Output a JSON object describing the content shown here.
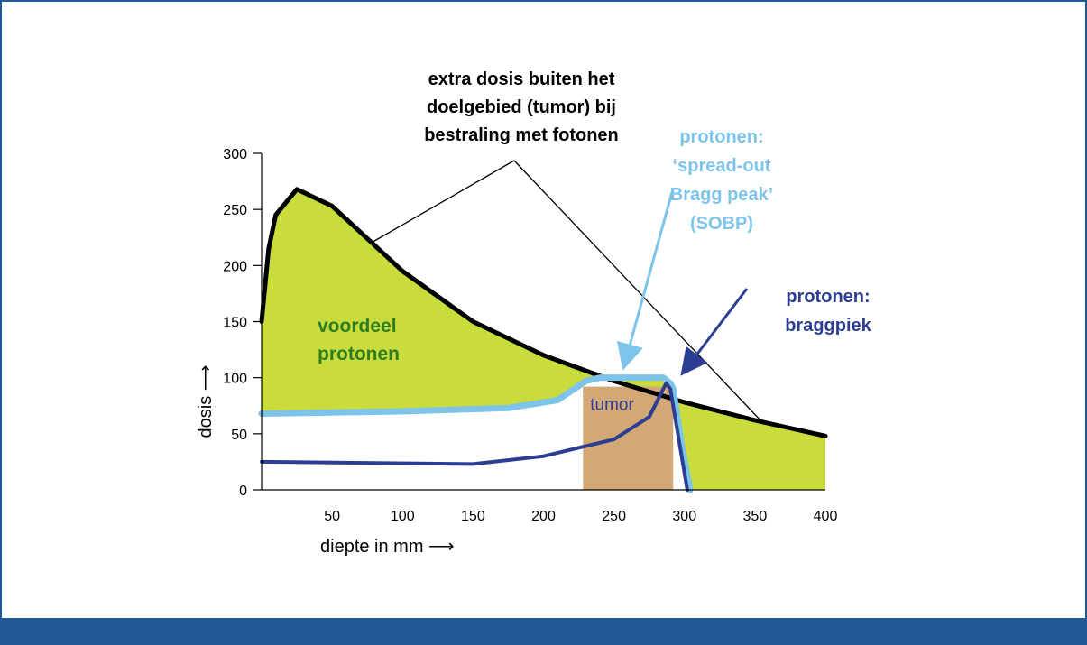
{
  "chart_data": {
    "type": "line",
    "xlim": [
      0,
      400
    ],
    "ylim": [
      0,
      300
    ],
    "xticks": [
      50,
      100,
      150,
      200,
      250,
      300,
      350,
      400
    ],
    "yticks": [
      0,
      50,
      100,
      150,
      200,
      250,
      300
    ],
    "x_label": "diepte in mm ⟶",
    "y_label": "dosis ⟶",
    "fill_color": "#c9dc3c",
    "series": [
      {
        "color": "#000000",
        "x": [
          0,
          5,
          10,
          25,
          50,
          100,
          150,
          200,
          250,
          300,
          350,
          400
        ],
        "values": [
          150,
          215,
          245,
          268,
          253,
          195,
          150,
          120,
          97,
          78,
          62,
          48
        ]
      },
      {
        "color": "#7dc3ea",
        "x": [
          0,
          100,
          175,
          210,
          230,
          240,
          285,
          290,
          292,
          298,
          304
        ],
        "values": [
          68,
          70,
          73,
          80,
          97,
          100,
          100,
          95,
          90,
          40,
          0
        ]
      },
      {
        "color": "#2c3e92",
        "x": [
          0,
          150,
          200,
          250,
          275,
          287,
          290,
          298,
          302
        ],
        "values": [
          25,
          23,
          30,
          45,
          65,
          95,
          90,
          30,
          0
        ]
      }
    ],
    "tumor": {
      "label": "tumor",
      "x": [
        228,
        292
      ],
      "value": 92,
      "color": "#d3a876"
    },
    "annotations": {
      "photons": [
        "extra dosis buiten het",
        "doelgebied (tumor) bij",
        "bestraling met fotonen"
      ],
      "advantage": [
        "voordeel",
        "protonen"
      ],
      "sobp": [
        "protonen:",
        "‘spread-out",
        "Bragg peak’",
        "(SOBP)"
      ],
      "bragg": [
        "protonen:",
        "braggpiek"
      ]
    }
  }
}
